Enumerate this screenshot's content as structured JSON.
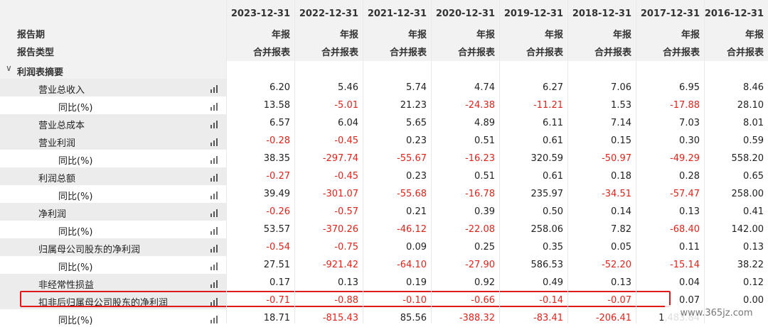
{
  "header": {
    "period_label": "报告期",
    "type_label": "报告类型",
    "columns": [
      {
        "date": "2023-12-31",
        "period": "年报",
        "type": "合并报表"
      },
      {
        "date": "2022-12-31",
        "period": "年报",
        "type": "合并报表"
      },
      {
        "date": "2021-12-31",
        "period": "年报",
        "type": "合并报表"
      },
      {
        "date": "2020-12-31",
        "period": "年报",
        "type": "合并报表"
      },
      {
        "date": "2019-12-31",
        "period": "年报",
        "type": "合并报表"
      },
      {
        "date": "2018-12-31",
        "period": "年报",
        "type": "合并报表"
      },
      {
        "date": "2017-12-31",
        "period": "年报",
        "type": "合并报表"
      },
      {
        "date": "2016-12-31",
        "period": "年报",
        "type": "合并报表"
      }
    ]
  },
  "section": {
    "label": "利润表摘要",
    "collapse_glyph": "∨"
  },
  "rows": [
    {
      "label": "营业总收入",
      "indent": 1,
      "shaded": true,
      "values": [
        "6.20",
        "5.46",
        "5.74",
        "4.74",
        "6.27",
        "7.06",
        "6.95",
        "8.46"
      ]
    },
    {
      "label": "同比(%)",
      "indent": 2,
      "shaded": false,
      "values": [
        "13.58",
        "-5.01",
        "21.23",
        "-24.38",
        "-11.21",
        "1.53",
        "-17.88",
        "28.10"
      ]
    },
    {
      "label": "营业总成本",
      "indent": 1,
      "shaded": true,
      "values": [
        "6.57",
        "6.04",
        "5.65",
        "4.89",
        "6.11",
        "7.14",
        "7.03",
        "8.01"
      ]
    },
    {
      "label": "营业利润",
      "indent": 1,
      "shaded": true,
      "values": [
        "-0.28",
        "-0.45",
        "0.23",
        "0.51",
        "0.61",
        "0.15",
        "0.30",
        "0.59"
      ]
    },
    {
      "label": "同比(%)",
      "indent": 2,
      "shaded": false,
      "values": [
        "38.35",
        "-297.74",
        "-55.67",
        "-16.23",
        "320.59",
        "-50.97",
        "-49.29",
        "558.20"
      ]
    },
    {
      "label": "利润总额",
      "indent": 1,
      "shaded": true,
      "values": [
        "-0.27",
        "-0.45",
        "0.23",
        "0.51",
        "0.61",
        "0.18",
        "0.28",
        "0.65"
      ]
    },
    {
      "label": "同比(%)",
      "indent": 2,
      "shaded": false,
      "values": [
        "39.49",
        "-301.07",
        "-55.68",
        "-16.78",
        "235.97",
        "-34.51",
        "-57.47",
        "258.00"
      ]
    },
    {
      "label": "净利润",
      "indent": 1,
      "shaded": true,
      "values": [
        "-0.26",
        "-0.57",
        "0.21",
        "0.39",
        "0.50",
        "0.14",
        "0.13",
        "0.41"
      ]
    },
    {
      "label": "同比(%)",
      "indent": 2,
      "shaded": false,
      "values": [
        "53.57",
        "-370.26",
        "-46.12",
        "-22.08",
        "258.06",
        "7.82",
        "-68.40",
        "142.00"
      ]
    },
    {
      "label": "归属母公司股东的净利润",
      "indent": 1,
      "shaded": true,
      "values": [
        "-0.54",
        "-0.75",
        "0.09",
        "0.25",
        "0.35",
        "0.05",
        "0.11",
        "0.13"
      ]
    },
    {
      "label": "同比(%)",
      "indent": 2,
      "shaded": false,
      "values": [
        "27.51",
        "-921.42",
        "-64.10",
        "-27.90",
        "586.53",
        "-52.20",
        "-15.14",
        "38.22"
      ]
    },
    {
      "label": "非经常性损益",
      "indent": 1,
      "shaded": true,
      "values": [
        "0.17",
        "0.13",
        "0.19",
        "0.92",
        "0.49",
        "0.13",
        "0.04",
        "0.12"
      ]
    },
    {
      "label": "扣非后归属母公司股东的净利润",
      "indent": 1,
      "shaded": true,
      "values": [
        "-0.71",
        "-0.88",
        "-0.10",
        "-0.66",
        "-0.14",
        "-0.07",
        "0.07",
        "0.00"
      ]
    },
    {
      "label": "同比(%)",
      "indent": 2,
      "shaded": false,
      "values": [
        "18.71",
        "-815.43",
        "85.56",
        "-388.32",
        "-83.41",
        "-206.41",
        "1,483.84",
        ""
      ]
    }
  ],
  "watermark": "www.365jz.com",
  "colors": {
    "negative": "#e0241b",
    "positive": "#222222",
    "highlight_border": "#e01a1a",
    "header_bg": "#f2f2f2"
  }
}
